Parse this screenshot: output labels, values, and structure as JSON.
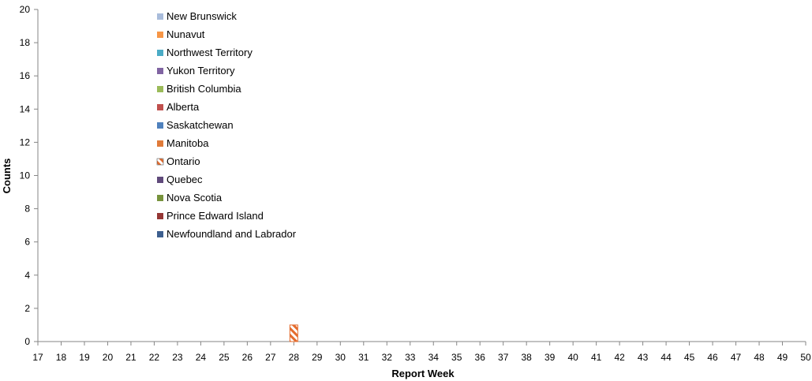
{
  "chart_data": {
    "type": "bar",
    "stacked": true,
    "xlabel": "Report Week",
    "ylabel": "Counts",
    "ylim": [
      0,
      20
    ],
    "yticks": [
      0,
      2,
      4,
      6,
      8,
      10,
      12,
      14,
      16,
      18,
      20
    ],
    "categories": [
      "17",
      "18",
      "19",
      "20",
      "21",
      "22",
      "23",
      "24",
      "25",
      "26",
      "27",
      "28",
      "29",
      "30",
      "31",
      "32",
      "33",
      "34",
      "35",
      "36",
      "37",
      "38",
      "39",
      "40",
      "41",
      "42",
      "43",
      "44",
      "45",
      "46",
      "47",
      "48",
      "49",
      "50"
    ],
    "grid": false,
    "legend_position": "top-left",
    "series": [
      {
        "name": "New Brunswick",
        "color": "#A9BCDB",
        "values": [
          0,
          0,
          0,
          0,
          0,
          0,
          0,
          0,
          0,
          0,
          0,
          0,
          0,
          0,
          0,
          0,
          0,
          0,
          0,
          0,
          0,
          0,
          0,
          0,
          0,
          0,
          0,
          0,
          0,
          0,
          0,
          0,
          0,
          0
        ]
      },
      {
        "name": "Nunavut",
        "color": "#F79646",
        "values": [
          0,
          0,
          0,
          0,
          0,
          0,
          0,
          0,
          0,
          0,
          0,
          0,
          0,
          0,
          0,
          0,
          0,
          0,
          0,
          0,
          0,
          0,
          0,
          0,
          0,
          0,
          0,
          0,
          0,
          0,
          0,
          0,
          0,
          0
        ]
      },
      {
        "name": "Northwest Territory",
        "color": "#4BACC6",
        "values": [
          0,
          0,
          0,
          0,
          0,
          0,
          0,
          0,
          0,
          0,
          0,
          0,
          0,
          0,
          0,
          0,
          0,
          0,
          0,
          0,
          0,
          0,
          0,
          0,
          0,
          0,
          0,
          0,
          0,
          0,
          0,
          0,
          0,
          0
        ]
      },
      {
        "name": "Yukon Territory",
        "color": "#8064A2",
        "values": [
          0,
          0,
          0,
          0,
          0,
          0,
          0,
          0,
          0,
          0,
          0,
          0,
          0,
          0,
          0,
          0,
          0,
          0,
          0,
          0,
          0,
          0,
          0,
          0,
          0,
          0,
          0,
          0,
          0,
          0,
          0,
          0,
          0,
          0
        ]
      },
      {
        "name": "British Columbia",
        "color": "#9BBB59",
        "values": [
          0,
          0,
          0,
          0,
          0,
          0,
          0,
          0,
          0,
          0,
          0,
          0,
          0,
          0,
          0,
          0,
          0,
          0,
          0,
          0,
          0,
          0,
          0,
          0,
          0,
          0,
          0,
          0,
          0,
          0,
          0,
          0,
          0,
          0
        ]
      },
      {
        "name": "Alberta",
        "color": "#C0504D",
        "values": [
          0,
          0,
          0,
          0,
          0,
          0,
          0,
          0,
          0,
          0,
          0,
          0,
          0,
          0,
          0,
          0,
          0,
          0,
          0,
          0,
          0,
          0,
          0,
          0,
          0,
          0,
          0,
          0,
          0,
          0,
          0,
          0,
          0,
          0
        ]
      },
      {
        "name": "Saskatchewan",
        "color": "#4F81BD",
        "values": [
          0,
          0,
          0,
          0,
          0,
          0,
          0,
          0,
          0,
          0,
          0,
          0,
          0,
          0,
          0,
          0,
          0,
          0,
          0,
          0,
          0,
          0,
          0,
          0,
          0,
          0,
          0,
          0,
          0,
          0,
          0,
          0,
          0,
          0
        ]
      },
      {
        "name": "Manitoba",
        "color": "#E07B39",
        "values": [
          0,
          0,
          0,
          0,
          0,
          0,
          0,
          0,
          0,
          0,
          0,
          0,
          0,
          0,
          0,
          0,
          0,
          0,
          0,
          0,
          0,
          0,
          0,
          0,
          0,
          0,
          0,
          0,
          0,
          0,
          0,
          0,
          0,
          0
        ]
      },
      {
        "name": "Ontario",
        "color": "#E46C2E",
        "pattern": "hatched",
        "values": [
          0,
          0,
          0,
          0,
          0,
          0,
          0,
          0,
          0,
          0,
          0,
          1,
          0,
          0,
          0,
          0,
          0,
          0,
          0,
          0,
          0,
          0,
          0,
          0,
          0,
          0,
          0,
          0,
          0,
          0,
          0,
          0,
          0,
          0
        ]
      },
      {
        "name": "Quebec",
        "color": "#604A7B",
        "values": [
          0,
          0,
          0,
          0,
          0,
          0,
          0,
          0,
          0,
          0,
          0,
          0,
          0,
          0,
          0,
          0,
          0,
          0,
          0,
          0,
          0,
          0,
          0,
          0,
          0,
          0,
          0,
          0,
          0,
          0,
          0,
          0,
          0,
          0
        ]
      },
      {
        "name": "Nova Scotia",
        "color": "#77933C",
        "values": [
          0,
          0,
          0,
          0,
          0,
          0,
          0,
          0,
          0,
          0,
          0,
          0,
          0,
          0,
          0,
          0,
          0,
          0,
          0,
          0,
          0,
          0,
          0,
          0,
          0,
          0,
          0,
          0,
          0,
          0,
          0,
          0,
          0,
          0
        ]
      },
      {
        "name": "Prince Edward Island",
        "color": "#953735",
        "values": [
          0,
          0,
          0,
          0,
          0,
          0,
          0,
          0,
          0,
          0,
          0,
          0,
          0,
          0,
          0,
          0,
          0,
          0,
          0,
          0,
          0,
          0,
          0,
          0,
          0,
          0,
          0,
          0,
          0,
          0,
          0,
          0,
          0,
          0
        ]
      },
      {
        "name": "Newfoundland and Labrador",
        "color": "#3D5F8F",
        "values": [
          0,
          0,
          0,
          0,
          0,
          0,
          0,
          0,
          0,
          0,
          0,
          0,
          0,
          0,
          0,
          0,
          0,
          0,
          0,
          0,
          0,
          0,
          0,
          0,
          0,
          0,
          0,
          0,
          0,
          0,
          0,
          0,
          0,
          0
        ]
      }
    ]
  }
}
